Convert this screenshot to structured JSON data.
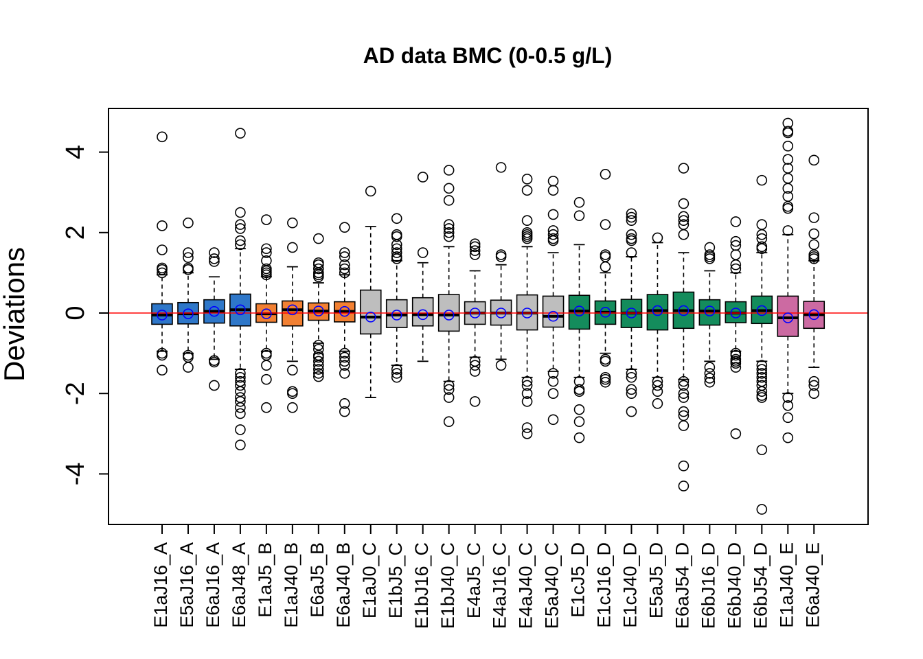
{
  "chart_data": {
    "type": "box",
    "title": "AD data BMC (0-0.5 g/L)",
    "ylabel": "Deviations",
    "xlabel": "",
    "ylim": [
      -5.2,
      5.0
    ],
    "yticks": [
      -4,
      -2,
      0,
      2,
      4
    ],
    "reference_line": {
      "y": 0,
      "color": "#ff0000"
    },
    "mean_marker_color": "#0000ff",
    "categories": [
      "E1aJ16_A",
      "E5aJ16_A",
      "E6aJ16_A",
      "E6aJ48_A",
      "E1aJ5_B",
      "E1aJ40_B",
      "E6aJ5_B",
      "E6aJ40_B",
      "E1aJ0_C",
      "E1bJ5_C",
      "E1bJ16_C",
      "E1bJ40_C",
      "E4aJ5_C",
      "E4aJ16_C",
      "E4aJ40_C",
      "E5aJ40_C",
      "E1cJ5_D",
      "E1cJ16_D",
      "E1cJ40_D",
      "E5aJ5_D",
      "E6aJ54_D",
      "E6bJ16_D",
      "E6bJ40_D",
      "E6bJ54_D",
      "E1aJ40_E",
      "E6aJ40_E"
    ],
    "series": [
      {
        "category": "E1aJ16_A",
        "color": "#2e77c9",
        "whisker_low": -0.95,
        "q1": -0.28,
        "median": -0.05,
        "q3": 0.23,
        "whisker_high": 0.95,
        "mean": -0.05,
        "outliers": [
          4.38,
          2.17,
          1.57,
          1.12,
          1.08,
          1.0,
          -1.0,
          -1.05,
          -1.42
        ]
      },
      {
        "category": "E5aJ16_A",
        "color": "#2e77c9",
        "whisker_low": -1.0,
        "q1": -0.27,
        "median": -0.02,
        "q3": 0.26,
        "whisker_high": 1.0,
        "mean": -0.02,
        "outliers": [
          2.24,
          1.5,
          1.38,
          1.12,
          1.08,
          -1.05,
          -1.1,
          -1.35
        ]
      },
      {
        "category": "E6aJ16_A",
        "color": "#2e77c9",
        "whisker_low": -1.15,
        "q1": -0.25,
        "median": 0.04,
        "q3": 0.33,
        "whisker_high": 0.9,
        "mean": 0.04,
        "outliers": [
          1.5,
          1.35,
          1.28,
          -1.18,
          -1.22,
          -1.8
        ]
      },
      {
        "category": "E6aJ48_A",
        "color": "#2e77c9",
        "whisker_low": -1.4,
        "q1": -0.32,
        "median": 0.08,
        "q3": 0.47,
        "whisker_high": 1.6,
        "mean": 0.08,
        "outliers": [
          4.47,
          2.5,
          2.2,
          2.1,
          1.8,
          1.7,
          -1.5,
          -1.6,
          -1.7,
          -1.8,
          -1.95,
          -2.1,
          -2.2,
          -2.35,
          -2.5,
          -2.9,
          -3.28
        ]
      },
      {
        "category": "E1aJ5_B",
        "color": "#f28032",
        "whisker_low": -0.95,
        "q1": -0.23,
        "median": -0.02,
        "q3": 0.23,
        "whisker_high": 0.9,
        "mean": -0.02,
        "outliers": [
          2.32,
          1.6,
          1.5,
          1.3,
          1.1,
          1.05,
          1.0,
          0.95,
          -1.0,
          -1.05,
          -1.3,
          -1.65,
          -2.35
        ]
      },
      {
        "category": "E1aJ40_B",
        "color": "#f28032",
        "whisker_low": -1.2,
        "q1": -0.32,
        "median": 0.08,
        "q3": 0.3,
        "whisker_high": 1.15,
        "mean": 0.08,
        "outliers": [
          2.24,
          1.63,
          -1.42,
          -1.95,
          -2.0,
          -2.35
        ]
      },
      {
        "category": "E6aJ5_B",
        "color": "#f28032",
        "whisker_low": -0.75,
        "q1": -0.18,
        "median": 0.05,
        "q3": 0.25,
        "whisker_high": 0.75,
        "mean": 0.05,
        "outliers": [
          1.85,
          1.25,
          1.2,
          1.1,
          1.0,
          0.95,
          0.9,
          -0.8,
          -0.9,
          -1.05,
          -1.1,
          -1.2,
          -1.3,
          -1.4,
          -1.5,
          -1.58
        ]
      },
      {
        "category": "E6aJ40_B",
        "color": "#f28032",
        "whisker_low": -0.95,
        "q1": -0.22,
        "median": 0.04,
        "q3": 0.28,
        "whisker_high": 0.95,
        "mean": 0.04,
        "outliers": [
          2.13,
          1.5,
          1.4,
          1.2,
          1.1,
          1.0,
          -1.0,
          -1.1,
          -1.2,
          -1.3,
          -1.5,
          -2.25,
          -2.45
        ]
      },
      {
        "category": "E1aJ0_C",
        "color": "#bebebe",
        "whisker_low": -2.1,
        "q1": -0.52,
        "median": -0.1,
        "q3": 0.57,
        "whisker_high": 2.15,
        "mean": -0.1,
        "outliers": [
          3.03
        ]
      },
      {
        "category": "E1bJ5_C",
        "color": "#bebebe",
        "whisker_low": -1.3,
        "q1": -0.36,
        "median": -0.05,
        "q3": 0.33,
        "whisker_high": 1.3,
        "mean": -0.05,
        "outliers": [
          2.35,
          1.95,
          1.9,
          1.7,
          1.6,
          1.5,
          1.4,
          1.35,
          -1.4,
          -1.5,
          -1.6
        ]
      },
      {
        "category": "E1bJ16_C",
        "color": "#bebebe",
        "whisker_low": -1.2,
        "q1": -0.32,
        "median": -0.04,
        "q3": 0.38,
        "whisker_high": 1.25,
        "mean": -0.04,
        "outliers": [
          3.38,
          1.5
        ]
      },
      {
        "category": "E1bJ40_C",
        "color": "#bebebe",
        "whisker_low": -1.7,
        "q1": -0.45,
        "median": -0.05,
        "q3": 0.46,
        "whisker_high": 1.65,
        "mean": -0.05,
        "outliers": [
          3.55,
          3.1,
          2.8,
          2.2,
          2.1,
          2.0,
          1.9,
          -1.8,
          -1.9,
          -2.1,
          -2.7
        ]
      },
      {
        "category": "E4aJ5_C",
        "color": "#bebebe",
        "whisker_low": -1.1,
        "q1": -0.28,
        "median": 0.0,
        "q3": 0.28,
        "whisker_high": 1.05,
        "mean": 0.0,
        "outliers": [
          1.72,
          1.65,
          1.55,
          1.45,
          -1.2,
          -1.3,
          -1.45,
          -2.2
        ]
      },
      {
        "category": "E4aJ16_C",
        "color": "#bebebe",
        "whisker_low": -1.15,
        "q1": -0.3,
        "median": 0.0,
        "q3": 0.32,
        "whisker_high": 1.2,
        "mean": 0.0,
        "outliers": [
          3.62,
          1.45,
          1.4,
          -1.3
        ]
      },
      {
        "category": "E4aJ40_C",
        "color": "#bebebe",
        "whisker_low": -1.6,
        "q1": -0.42,
        "median": 0.0,
        "q3": 0.45,
        "whisker_high": 1.65,
        "mean": 0.0,
        "outliers": [
          3.33,
          3.05,
          2.3,
          2.0,
          1.95,
          1.9,
          1.85,
          -1.7,
          -1.8,
          -2.0,
          -2.2,
          -2.85,
          -3.0
        ]
      },
      {
        "category": "E5aJ40_C",
        "color": "#bebebe",
        "whisker_low": -1.45,
        "q1": -0.35,
        "median": -0.08,
        "q3": 0.42,
        "whisker_high": 1.5,
        "mean": -0.08,
        "outliers": [
          3.28,
          3.05,
          2.45,
          2.05,
          1.95,
          1.85,
          1.8,
          -1.5,
          -1.7,
          -2.0,
          -2.65
        ]
      },
      {
        "category": "E1cJ5_D",
        "color": "#148c5c",
        "whisker_low": -1.6,
        "q1": -0.4,
        "median": 0.05,
        "q3": 0.44,
        "whisker_high": 1.7,
        "mean": 0.05,
        "outliers": [
          2.75,
          2.42,
          -1.7,
          -1.9,
          -1.95,
          -2.4,
          -2.7,
          -3.1
        ]
      },
      {
        "category": "E1cJ16_D",
        "color": "#148c5c",
        "whisker_low": -1.0,
        "q1": -0.28,
        "median": 0.02,
        "q3": 0.3,
        "whisker_high": 1.0,
        "mean": 0.02,
        "outliers": [
          3.45,
          2.2,
          1.45,
          1.4,
          1.15,
          -1.15,
          -1.2,
          -1.6,
          -1.65,
          -1.72
        ]
      },
      {
        "category": "E1cJ40_D",
        "color": "#148c5c",
        "whisker_low": -1.4,
        "q1": -0.36,
        "median": 0.0,
        "q3": 0.34,
        "whisker_high": 1.4,
        "mean": 0.0,
        "outliers": [
          2.47,
          2.38,
          2.3,
          1.95,
          1.85,
          1.8,
          1.5,
          -1.5,
          -1.6,
          -1.9,
          -2.0,
          -2.45
        ]
      },
      {
        "category": "E5aJ5_D",
        "color": "#148c5c",
        "whisker_low": -1.6,
        "q1": -0.42,
        "median": 0.06,
        "q3": 0.46,
        "whisker_high": 1.75,
        "mean": 0.06,
        "outliers": [
          1.87,
          -1.7,
          -1.8,
          -1.95,
          -2.25
        ]
      },
      {
        "category": "E6aJ54_D",
        "color": "#148c5c",
        "whisker_low": -1.65,
        "q1": -0.38,
        "median": 0.06,
        "q3": 0.52,
        "whisker_high": 1.5,
        "mean": 0.06,
        "outliers": [
          3.6,
          2.72,
          2.4,
          2.3,
          2.2,
          1.95,
          -1.7,
          -1.8,
          -2.0,
          -2.1,
          -2.45,
          -2.55,
          -2.8,
          -3.8,
          -4.3
        ]
      },
      {
        "category": "E6bJ16_D",
        "color": "#148c5c",
        "whisker_low": -1.2,
        "q1": -0.3,
        "median": 0.05,
        "q3": 0.33,
        "whisker_high": 1.05,
        "mean": 0.05,
        "outliers": [
          1.63,
          1.45,
          1.4,
          1.35,
          -1.35,
          -1.5,
          -1.62,
          -1.72
        ]
      },
      {
        "category": "E6bJ40_D",
        "color": "#148c5c",
        "whisker_low": -0.95,
        "q1": -0.24,
        "median": 0.0,
        "q3": 0.28,
        "whisker_high": 1.0,
        "mean": 0.0,
        "outliers": [
          2.27,
          1.78,
          1.68,
          1.45,
          1.2,
          1.1,
          -1.0,
          -1.05,
          -1.15,
          -1.2,
          -1.25,
          -1.35,
          -3.0
        ]
      },
      {
        "category": "E6bJ54_D",
        "color": "#148c5c",
        "whisker_low": -1.2,
        "q1": -0.26,
        "median": 0.06,
        "q3": 0.42,
        "whisker_high": 1.5,
        "mean": 0.06,
        "outliers": [
          3.3,
          2.2,
          1.95,
          1.85,
          1.65,
          1.6,
          -1.3,
          -1.4,
          -1.5,
          -1.6,
          -1.7,
          -1.8,
          -1.95,
          -2.05,
          -2.1,
          -3.4,
          -4.88
        ]
      },
      {
        "category": "E1aJ40_E",
        "color": "#cc6aa2",
        "whisker_low": -2.0,
        "q1": -0.58,
        "median": -0.12,
        "q3": 0.42,
        "whisker_high": 1.95,
        "mean": -0.12,
        "outliers": [
          4.72,
          4.52,
          4.48,
          4.15,
          3.82,
          3.6,
          3.35,
          3.1,
          2.9,
          2.65,
          2.6,
          2.05,
          -2.1,
          -2.3,
          -2.6,
          -3.1
        ]
      },
      {
        "category": "E6aJ40_E",
        "color": "#cc6aa2",
        "whisker_low": -1.35,
        "q1": -0.38,
        "median": -0.04,
        "q3": 0.29,
        "whisker_high": 1.3,
        "mean": -0.04,
        "outliers": [
          3.8,
          2.37,
          1.97,
          1.7,
          1.45,
          1.4,
          1.35,
          -1.7,
          -1.8,
          -2.0
        ]
      }
    ]
  }
}
